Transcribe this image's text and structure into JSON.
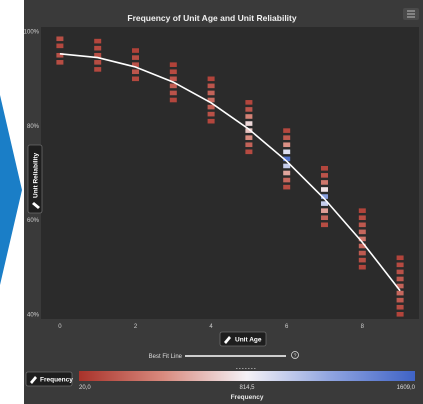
{
  "chart_data": {
    "type": "heatmap",
    "title": "Frequency of Unit Age and Unit Reliability",
    "xlabel": "Unit Age",
    "ylabel": "Unit Reliability",
    "x_ticks": [
      "0",
      "2",
      "4",
      "6",
      "8"
    ],
    "y_ticks": [
      "100%",
      "80%",
      "60%",
      "40%"
    ],
    "xlim": [
      -0.5,
      9.5
    ],
    "ylim": [
      0.39,
      1.01
    ],
    "fit_line_label": "Best Fit Line",
    "fit_line": {
      "x": [
        0,
        1,
        2,
        3,
        4,
        5,
        6,
        7,
        8,
        9
      ],
      "y": [
        0.953,
        0.945,
        0.925,
        0.893,
        0.849,
        0.793,
        0.725,
        0.645,
        0.553,
        0.45
      ]
    },
    "columns": [
      {
        "x": 0,
        "cells": [
          {
            "y": 0.985,
            "f": 150
          },
          {
            "y": 0.97,
            "f": 120
          },
          {
            "y": 0.95,
            "f": 160
          },
          {
            "y": 0.935,
            "f": 140
          }
        ]
      },
      {
        "x": 1,
        "cells": [
          {
            "y": 0.98,
            "f": 110
          },
          {
            "y": 0.965,
            "f": 130
          },
          {
            "y": 0.95,
            "f": 150
          },
          {
            "y": 0.935,
            "f": 140
          },
          {
            "y": 0.92,
            "f": 120
          }
        ]
      },
      {
        "x": 2,
        "cells": [
          {
            "y": 0.96,
            "f": 90
          },
          {
            "y": 0.945,
            "f": 140
          },
          {
            "y": 0.93,
            "f": 160
          },
          {
            "y": 0.915,
            "f": 180
          },
          {
            "y": 0.9,
            "f": 120
          }
        ]
      },
      {
        "x": 3,
        "cells": [
          {
            "y": 0.93,
            "f": 90
          },
          {
            "y": 0.915,
            "f": 130
          },
          {
            "y": 0.9,
            "f": 180
          },
          {
            "y": 0.885,
            "f": 220
          },
          {
            "y": 0.87,
            "f": 170
          },
          {
            "y": 0.855,
            "f": 110
          }
        ]
      },
      {
        "x": 4,
        "cells": [
          {
            "y": 0.9,
            "f": 100
          },
          {
            "y": 0.885,
            "f": 180
          },
          {
            "y": 0.87,
            "f": 240
          },
          {
            "y": 0.855,
            "f": 280
          },
          {
            "y": 0.84,
            "f": 220
          },
          {
            "y": 0.825,
            "f": 160
          },
          {
            "y": 0.81,
            "f": 110
          }
        ]
      },
      {
        "x": 5,
        "cells": [
          {
            "y": 0.85,
            "f": 110
          },
          {
            "y": 0.835,
            "f": 180
          },
          {
            "y": 0.82,
            "f": 380
          },
          {
            "y": 0.805,
            "f": 720
          },
          {
            "y": 0.79,
            "f": 640
          },
          {
            "y": 0.775,
            "f": 420
          },
          {
            "y": 0.76,
            "f": 240
          },
          {
            "y": 0.745,
            "f": 130
          }
        ]
      },
      {
        "x": 6,
        "cells": [
          {
            "y": 0.79,
            "f": 120
          },
          {
            "y": 0.775,
            "f": 200
          },
          {
            "y": 0.76,
            "f": 440
          },
          {
            "y": 0.745,
            "f": 900
          },
          {
            "y": 0.73,
            "f": 1500
          },
          {
            "y": 0.715,
            "f": 1000
          },
          {
            "y": 0.7,
            "f": 520
          },
          {
            "y": 0.685,
            "f": 260
          },
          {
            "y": 0.67,
            "f": 140
          }
        ]
      },
      {
        "x": 7,
        "cells": [
          {
            "y": 0.71,
            "f": 110
          },
          {
            "y": 0.695,
            "f": 170
          },
          {
            "y": 0.68,
            "f": 330
          },
          {
            "y": 0.665,
            "f": 760
          },
          {
            "y": 0.65,
            "f": 1250
          },
          {
            "y": 0.635,
            "f": 1000
          },
          {
            "y": 0.62,
            "f": 500
          },
          {
            "y": 0.605,
            "f": 250
          },
          {
            "y": 0.59,
            "f": 140
          }
        ]
      },
      {
        "x": 8,
        "cells": [
          {
            "y": 0.62,
            "f": 100
          },
          {
            "y": 0.605,
            "f": 140
          },
          {
            "y": 0.59,
            "f": 190
          },
          {
            "y": 0.575,
            "f": 260
          },
          {
            "y": 0.56,
            "f": 320
          },
          {
            "y": 0.545,
            "f": 260
          },
          {
            "y": 0.53,
            "f": 200
          },
          {
            "y": 0.515,
            "f": 150
          },
          {
            "y": 0.5,
            "f": 110
          }
        ]
      },
      {
        "x": 9,
        "cells": [
          {
            "y": 0.52,
            "f": 100
          },
          {
            "y": 0.505,
            "f": 130
          },
          {
            "y": 0.49,
            "f": 160
          },
          {
            "y": 0.475,
            "f": 190
          },
          {
            "y": 0.46,
            "f": 240
          },
          {
            "y": 0.445,
            "f": 260
          },
          {
            "y": 0.43,
            "f": 200
          },
          {
            "y": 0.415,
            "f": 140
          },
          {
            "y": 0.4,
            "f": 100
          }
        ]
      }
    ],
    "legend": {
      "title": "Frequency",
      "pill_label": "Frequency",
      "min": 20,
      "mid": 814.5,
      "max": 1609,
      "min_label": "20,0",
      "mid_label": "814,5",
      "max_label": "1609,0",
      "colors": [
        "#a8322a",
        "#d98a7e",
        "#f4f1f6",
        "#8fa4e0",
        "#3f63c6"
      ]
    },
    "menu_icon": "hamburger-menu-icon",
    "pencil_icon": "pencil-icon",
    "help_icon": "help-icon",
    "accent": "#1a7ec7"
  }
}
